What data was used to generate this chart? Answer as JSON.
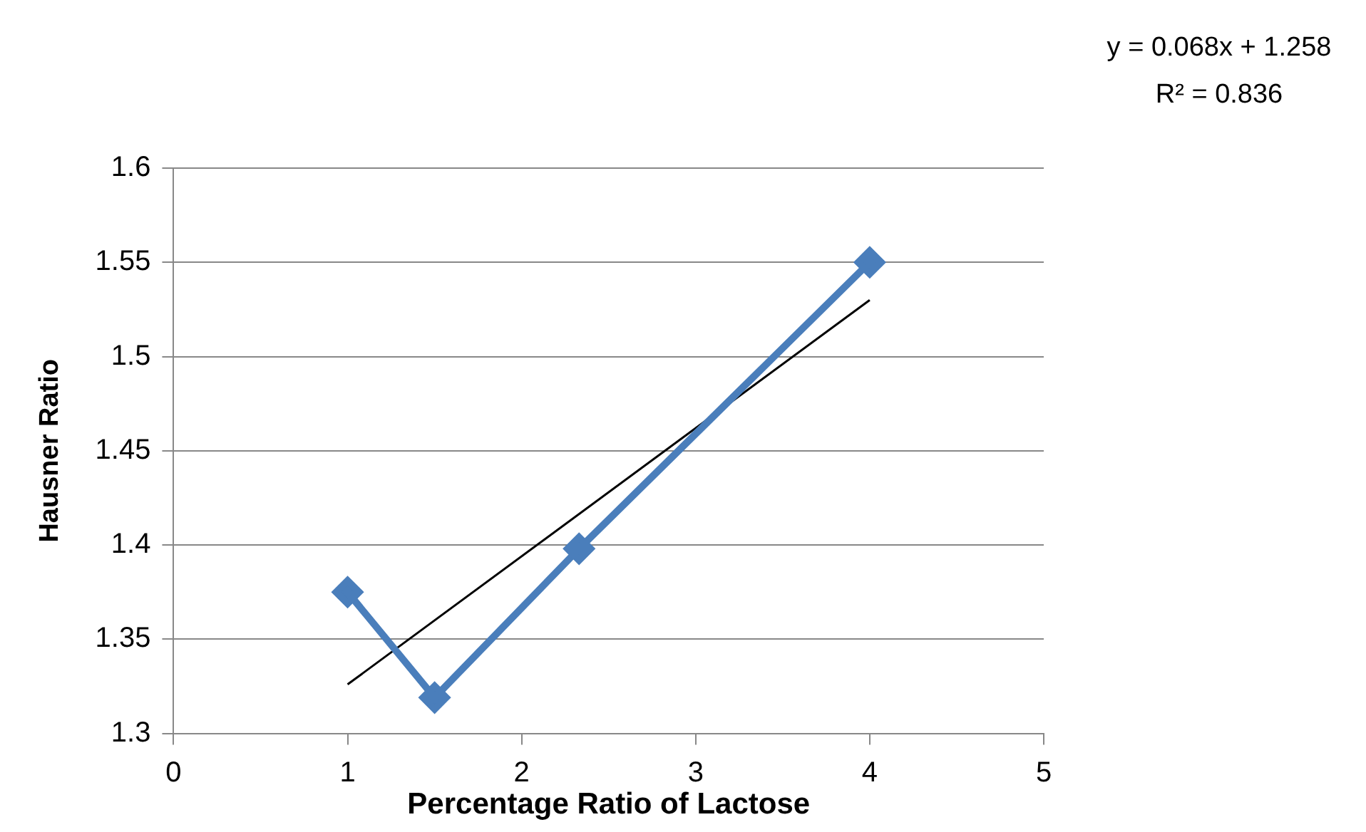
{
  "chart_data": {
    "type": "line",
    "xlabel": "Percentage Ratio of Lactose",
    "ylabel": "Hausner Ratio",
    "annotations": [
      "y = 0.068x + 1.258",
      "R² = 0.836"
    ],
    "x": [
      1,
      1.5,
      2.33,
      4
    ],
    "series": [
      {
        "color": "#4a7ebb",
        "values": [
          1.375,
          1.319,
          1.398,
          1.55
        ],
        "marker": "diamond",
        "line_style": "solid"
      },
      {
        "color": "#000000",
        "x": [
          1,
          4
        ],
        "values": [
          1.326,
          1.53
        ],
        "marker": "none",
        "line_style": "solid"
      }
    ],
    "xlim": [
      0,
      5
    ],
    "xticks": [
      0,
      1,
      2,
      3,
      4,
      5
    ],
    "ylim": [
      1.3,
      1.6
    ],
    "yticks": [
      1.3,
      1.35,
      1.4,
      1.45,
      1.5,
      1.55,
      1.6
    ],
    "grid": "y",
    "legend": false
  }
}
